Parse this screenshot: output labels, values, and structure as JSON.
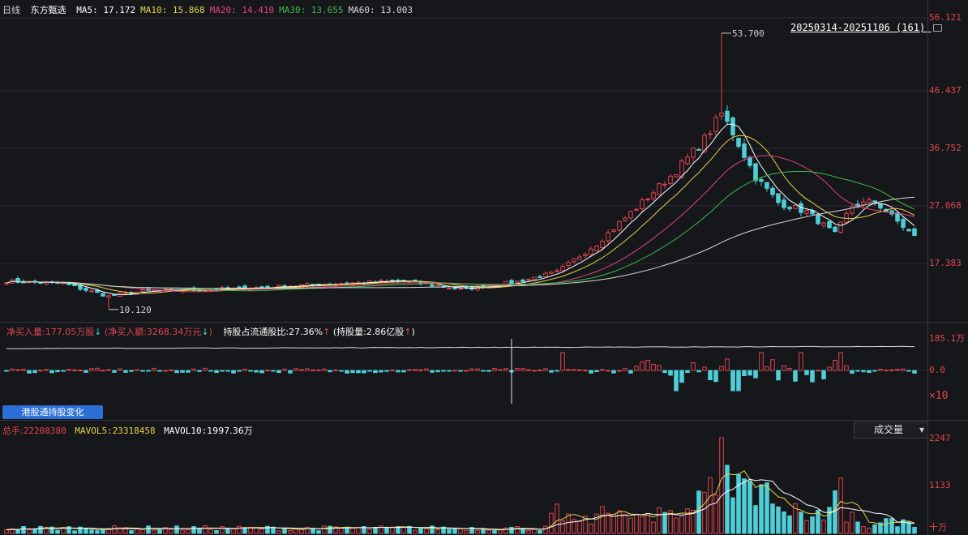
{
  "header": {
    "period": "日线",
    "stock_name": "东方甄选",
    "ma_items": [
      {
        "label": "MA5:",
        "value": "17.172",
        "color": "#ffffff"
      },
      {
        "label": "MA10:",
        "value": "15.868",
        "color": "#e6d34a"
      },
      {
        "label": "MA20:",
        "value": "14.410",
        "color": "#e0457b"
      },
      {
        "label": "MA30:",
        "value": "13.655",
        "color": "#3dbb4a"
      },
      {
        "label": "MA60:",
        "value": "13.003",
        "color": "#d8d8d8"
      }
    ],
    "date_range": "20250314-20251106 (161)"
  },
  "colors": {
    "up": "#e0454f",
    "down": "#4fcfd8",
    "bg": "#16171b",
    "grid": "#2a2c33"
  },
  "chart_data": [
    {
      "type": "candlestick",
      "title": "东方甄选 日线",
      "y_ticks": [
        "56.121",
        "46.437",
        "36.752",
        "27.068",
        "17.383"
      ],
      "ylim": [
        8.0,
        56.121
      ],
      "x_range": [
        "20250314",
        "20251106"
      ],
      "bars": 161,
      "max_label": "53.700",
      "min_label": "10.120",
      "ma_latest": {
        "MA5": 17.172,
        "MA10": 15.868,
        "MA20": 14.41,
        "MA30": 13.655,
        "MA60": 13.003
      },
      "close_keypoints": [
        {
          "index": 0,
          "close": 14.6
        },
        {
          "index": 10,
          "close": 14.2
        },
        {
          "index": 18,
          "close": 12.2
        },
        {
          "index": 24,
          "close": 13.0
        },
        {
          "index": 40,
          "close": 13.4
        },
        {
          "index": 60,
          "close": 14.3
        },
        {
          "index": 70,
          "close": 14.6
        },
        {
          "index": 80,
          "close": 13.3
        },
        {
          "index": 90,
          "close": 14.5
        },
        {
          "index": 97,
          "close": 16.0
        },
        {
          "index": 104,
          "close": 20.5
        },
        {
          "index": 112,
          "close": 27.0
        },
        {
          "index": 118,
          "close": 32.0
        },
        {
          "index": 123,
          "close": 37.0
        },
        {
          "index": 126,
          "close": 41.0
        },
        {
          "index": 128,
          "close": 38.0
        },
        {
          "index": 132,
          "close": 31.0
        },
        {
          "index": 136,
          "close": 27.0
        },
        {
          "index": 141,
          "close": 25.5
        },
        {
          "index": 146,
          "close": 22.0
        },
        {
          "index": 149,
          "close": 26.5
        },
        {
          "index": 153,
          "close": 27.2
        },
        {
          "index": 157,
          "close": 24.0
        },
        {
          "index": 160,
          "close": 21.6
        }
      ]
    },
    {
      "type": "bar",
      "title": "港股通持股变化",
      "y_ticks": [
        "185.1万",
        "0.0"
      ],
      "multiplier": "×10",
      "net_buy_volume": "净买入量:177.05万股",
      "net_buy_amount": "净买入额:3268.34万元",
      "hold_ratio": "持股占流通股比:27.36%",
      "hold_amount": "持股量:2.86亿股"
    },
    {
      "type": "bar",
      "title": "成交量",
      "y_ticks": [
        "2247",
        "1133",
        "十万"
      ],
      "total_label": "总手:",
      "total_value": "22208380",
      "mavol5_label": "MAVOL5:",
      "mavol5_value": "23318458",
      "mavol10_label": "MAVOL10:",
      "mavol10_value": "1997.36万",
      "peak_value": 2247
    }
  ],
  "tabs": {
    "hk_connect": "港股通持股变化"
  },
  "volume_selector": {
    "label": "成交量",
    "arrow": "▾"
  }
}
